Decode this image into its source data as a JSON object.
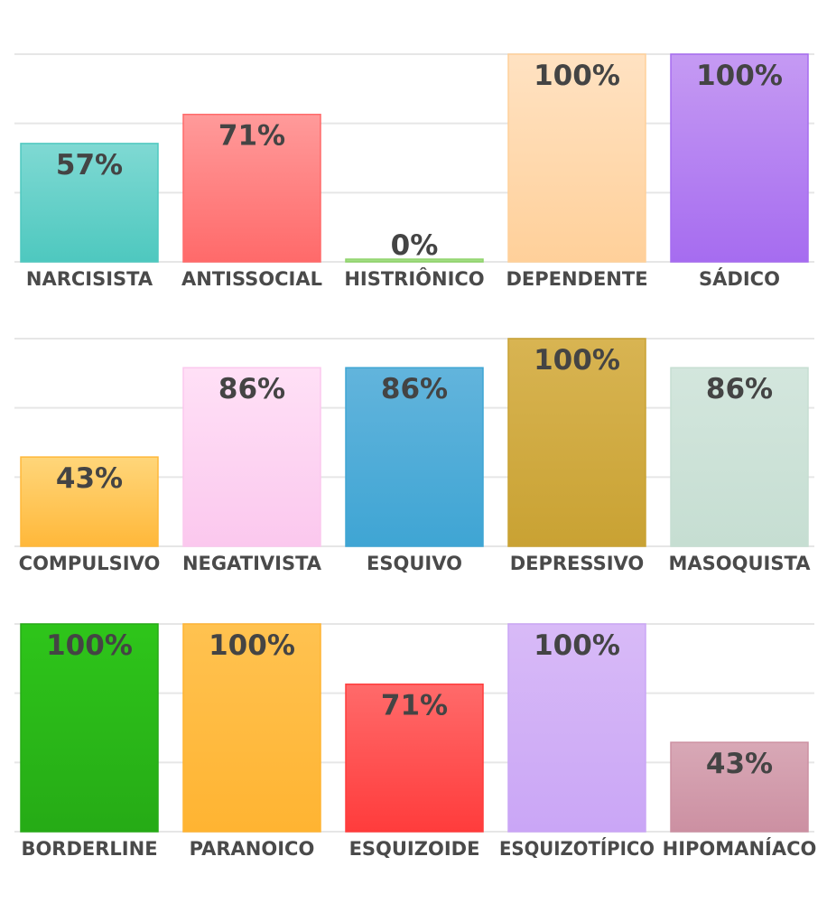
{
  "chart_data": [
    {
      "type": "bar",
      "categories": [
        "NARCISISTA",
        "ANTISSOCIAL",
        "HISTRIÔNICO",
        "DEPENDENTE",
        "SÁDICO"
      ],
      "values": [
        57,
        71,
        0,
        100,
        100
      ],
      "value_labels": [
        "57%",
        "71%",
        "0%",
        "100%",
        "100%"
      ],
      "colors": [
        [
          "#7fd9d3",
          "#4ec8bf"
        ],
        [
          "#ff9a9a",
          "#ff6a6a"
        ],
        [
          "#b8e6a0",
          "#8ed46a"
        ],
        [
          "#ffe2c2",
          "#ffd09a"
        ],
        [
          "#c59af3",
          "#a66cf0"
        ]
      ],
      "ylim": [
        0,
        100
      ],
      "grid": true
    },
    {
      "type": "bar",
      "categories": [
        "COMPULSIVO",
        "NEGATIVISTA",
        "ESQUIVO",
        "DEPRESSIVO",
        "MASOQUISTA"
      ],
      "values": [
        43,
        86,
        86,
        100,
        86
      ],
      "value_labels": [
        "43%",
        "86%",
        "86%",
        "100%",
        "86%"
      ],
      "colors": [
        [
          "#ffd67a",
          "#ffb83a"
        ],
        [
          "#ffe0f6",
          "#fbc8ee"
        ],
        [
          "#62b4dc",
          "#3fa5d4"
        ],
        [
          "#d8b452",
          "#c9a233"
        ],
        [
          "#d3e6dd",
          "#c6ded2"
        ]
      ],
      "ylim": [
        0,
        100
      ],
      "grid": true
    },
    {
      "type": "bar",
      "categories": [
        "BORDERLINE",
        "PARANOICO",
        "ESQUIZOIDE",
        "ESQUIZOTÍPICO",
        "HIPOMANÍACO"
      ],
      "values": [
        100,
        100,
        71,
        100,
        43
      ],
      "value_labels": [
        "100%",
        "100%",
        "71%",
        "100%",
        "43%"
      ],
      "colors": [
        [
          "#2ec51a",
          "#26ab16"
        ],
        [
          "#ffc250",
          "#ffb432"
        ],
        [
          "#ff6a6a",
          "#ff3c3c"
        ],
        [
          "#d8baf7",
          "#caa6f6"
        ],
        [
          "#d8a8b6",
          "#cc90a2"
        ]
      ],
      "ylim": [
        0,
        100
      ],
      "grid": true
    }
  ]
}
